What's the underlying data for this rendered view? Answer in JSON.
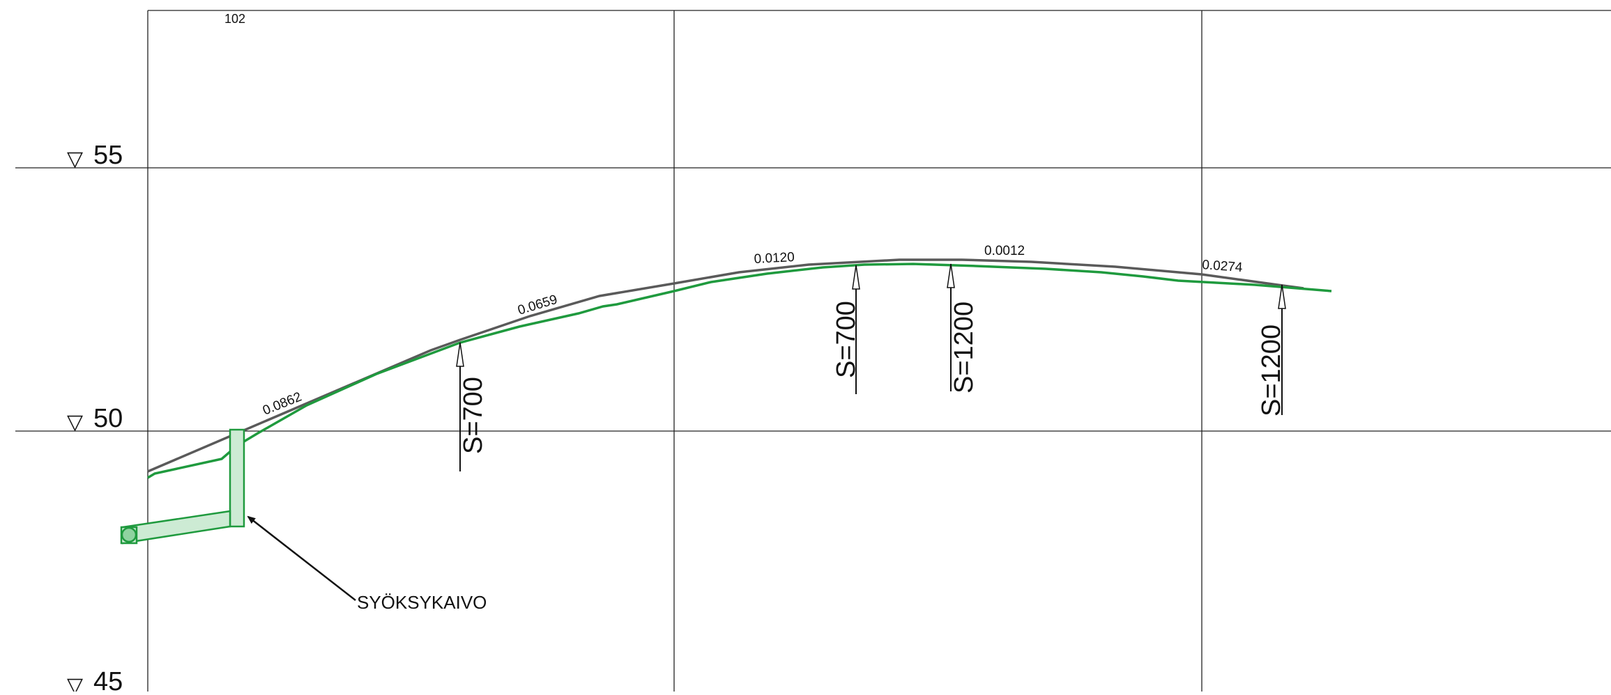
{
  "drawing": {
    "station_label": "102",
    "elevations": [
      {
        "value": "55",
        "marker": "▽"
      },
      {
        "value": "50",
        "marker": "▽"
      },
      {
        "value": "45",
        "marker": "▽"
      }
    ],
    "slopes": [
      {
        "text": "0.0862"
      },
      {
        "text": "0.0659"
      },
      {
        "text": "0.0120"
      },
      {
        "text": "0.0012"
      },
      {
        "text": "0.0274"
      }
    ],
    "pipe_sizes": [
      {
        "text": "S=700"
      },
      {
        "text": "S=700"
      },
      {
        "text": "S=1200"
      },
      {
        "text": "S=1200"
      }
    ],
    "callout": "SYÖKSYKAIVO",
    "colors": {
      "grid": "#222222",
      "ground_line": "#5a5a5a",
      "pipe_line": "#1f9a3e",
      "manhole_fill": "#cdebd4"
    }
  }
}
